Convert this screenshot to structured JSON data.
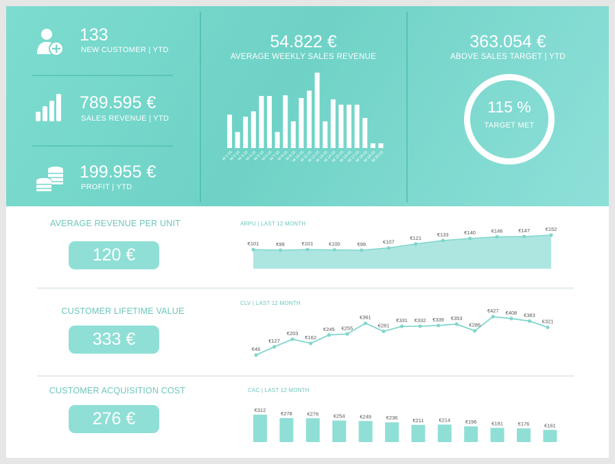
{
  "kpis": [
    {
      "value": "133",
      "label": "NEW CUSTOMER | YTD",
      "icon": "add-user-icon"
    },
    {
      "value": "789.595 €",
      "label": "SALES REVENUE | YTD",
      "icon": "bar-chart-icon"
    },
    {
      "value": "199.955 €",
      "label": "PROFIT | YTD",
      "icon": "coins-icon"
    }
  ],
  "weekly": {
    "value": "54.822 €",
    "label": "AVERAGE WEEKLY SALES REVENUE"
  },
  "target": {
    "value": "363.054 €",
    "label": "ABOVE SALES TARGET | YTD",
    "percent": "115 %",
    "ring_label": "TARGET MET"
  },
  "arpu": {
    "title": "AVERAGE REVENUE PER UNIT",
    "value": "120 €"
  },
  "clv": {
    "title": "CUSTOMER LIFETIME VALUE",
    "value": "333 €"
  },
  "cac": {
    "title": "CUSTOMER ACQUISITION COST",
    "value": "276 €"
  },
  "colors": {
    "accent": "#7ddcd0",
    "pill": "#8fdfd6",
    "area": "#ade6e1",
    "line": "#7fd6cc",
    "label": "#6cc6bb",
    "value_text": "#555555"
  },
  "chart_data": [
    {
      "type": "bar",
      "categories": [
        "W 1-16",
        "W 2-16",
        "W 3-16",
        "W 4-16",
        "W 5-16",
        "W 6-16",
        "W 7-16",
        "W 8-16",
        "W 9-16",
        "W 10-16",
        "W 11-16",
        "W 12-16",
        "W 13-16",
        "W 14-16",
        "W 15-16",
        "W 16-16",
        "W 17-16",
        "W 18-16",
        "W 19-16",
        "W 20-16"
      ],
      "values": [
        50,
        24,
        47,
        55,
        78,
        78,
        24,
        79,
        40,
        75,
        86,
        113,
        40,
        73,
        65,
        65,
        65,
        45,
        7,
        7
      ],
      "ylim": [
        0,
        113
      ]
    },
    {
      "type": "area",
      "title": "ARPU | LAST 12 MONTH",
      "values": [
        101,
        99,
        101,
        100,
        99,
        107,
        121,
        133,
        140,
        146,
        147,
        152
      ],
      "labels": [
        "€101",
        "€99",
        "€101",
        "€100",
        "€99",
        "€107",
        "€121",
        "€133",
        "€140",
        "€146",
        "€147",
        "€152"
      ]
    },
    {
      "type": "line",
      "title": "CLV | LAST 12 MONTH",
      "values": [
        46,
        127,
        203,
        162,
        245,
        255,
        361,
        281,
        331,
        332,
        339,
        353,
        286,
        427,
        408,
        383,
        321
      ],
      "labels": [
        "€46",
        "€127",
        "€203",
        "€162",
        "€245",
        "€255",
        "€361",
        "€281",
        "€331",
        "€332",
        "€339",
        "€353",
        "€286",
        "€427",
        "€408",
        "€383",
        "€321"
      ]
    },
    {
      "type": "bar",
      "title": "CAC | LAST 12 MONTH",
      "values": [
        312,
        278,
        276,
        254,
        249,
        236,
        211,
        214,
        196,
        181,
        176,
        161
      ],
      "labels": [
        "€312",
        "€278",
        "€276",
        "€254",
        "€249",
        "€236",
        "€211",
        "€214",
        "€196",
        "€181",
        "€176",
        "€161"
      ]
    }
  ]
}
